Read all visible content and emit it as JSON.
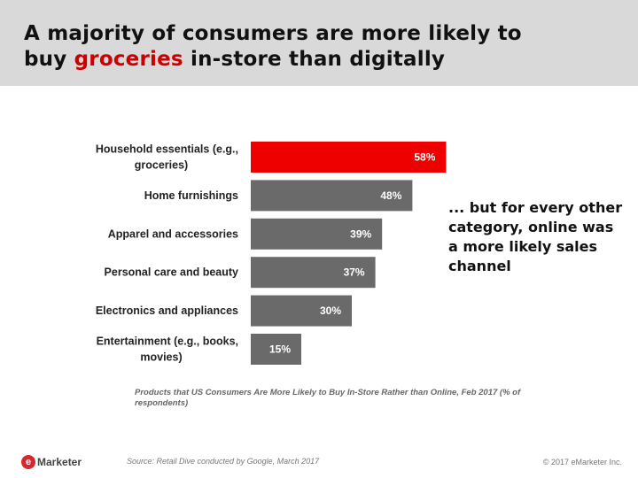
{
  "header": {
    "title_line1": "A majority of consumers are more likely to",
    "title_line2_pre": "buy ",
    "title_line2_accent": "groceries",
    "title_line2_post": " in-store than digitally"
  },
  "chart_data": {
    "type": "bar",
    "orientation": "horizontal",
    "categories": [
      [
        "Household essentials (e.g.,",
        "groceries)"
      ],
      [
        "Home furnishings"
      ],
      [
        "Apparel and accessories"
      ],
      [
        "Personal care and beauty"
      ],
      [
        "Electronics and appliances"
      ],
      [
        "Entertainment (e.g., books,",
        "movies)"
      ]
    ],
    "values": [
      58,
      48,
      39,
      37,
      30,
      15
    ],
    "value_labels": [
      "58%",
      "48%",
      "39%",
      "37%",
      "30%",
      "15%"
    ],
    "colors": [
      "#ee0000",
      "#6a6a6a",
      "#6a6a6a",
      "#6a6a6a",
      "#6a6a6a",
      "#6a6a6a"
    ],
    "xlim": [
      0,
      100
    ],
    "caption": "Products that US Consumers Are More Likely to Buy In-Store Rather than Online, Feb 2017 (% of respondents)"
  },
  "callout": "... but for every other category, online was a more likely sales channel",
  "footer": {
    "logo_mark": "e",
    "logo_text": "Marketer",
    "source": "Source: Retail Dive conducted by Google, March 2017",
    "copyright": "© 2017 eMarketer Inc."
  }
}
